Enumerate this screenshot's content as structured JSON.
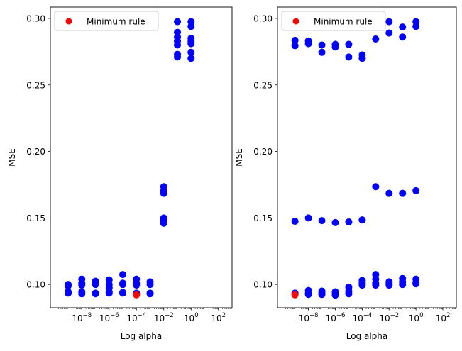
{
  "colors": {
    "series_color": "#0000ff",
    "highlight_color": "#ff0000",
    "axis_color": "#000000",
    "background": "#ffffff"
  },
  "chart_data": [
    {
      "type": "scatter",
      "xscale": "log",
      "xlabel": "Log alpha",
      "ylabel": "MSE",
      "xlim": [
        5e-11,
        1000
      ],
      "ylim": [
        0.0825,
        0.3085
      ],
      "xticks": [
        {
          "value": 1e-08,
          "base": "10",
          "exp": "−8"
        },
        {
          "value": 1e-06,
          "base": "10",
          "exp": "−6"
        },
        {
          "value": 0.0001,
          "base": "10",
          "exp": "−4"
        },
        {
          "value": 0.01,
          "base": "10",
          "exp": "−2"
        },
        {
          "value": 1,
          "base": "10",
          "exp": "0"
        },
        {
          "value": 100,
          "base": "10",
          "exp": "2"
        }
      ],
      "yticks": [
        {
          "value": 0.1,
          "label": "0.10"
        },
        {
          "value": 0.15,
          "label": "0.15"
        },
        {
          "value": 0.2,
          "label": "0.20"
        },
        {
          "value": 0.25,
          "label": "0.25"
        },
        {
          "value": 0.3,
          "label": "0.30"
        }
      ],
      "legend": {
        "position": "top-left",
        "entries": [
          {
            "label": "Minimum rule",
            "color": "#ff0000"
          }
        ]
      },
      "series": [
        {
          "color": "#0000ff",
          "points": [
            {
              "x": 1e-09,
              "y": 0.1
            },
            {
              "x": 1e-09,
              "y": 0.099
            },
            {
              "x": 1e-09,
              "y": 0.0945
            },
            {
              "x": 1e-09,
              "y": 0.0935
            },
            {
              "x": 1e-08,
              "y": 0.104
            },
            {
              "x": 1e-08,
              "y": 0.101
            },
            {
              "x": 1e-08,
              "y": 0.0995
            },
            {
              "x": 1e-08,
              "y": 0.0945
            },
            {
              "x": 1e-08,
              "y": 0.093
            },
            {
              "x": 1e-07,
              "y": 0.1025
            },
            {
              "x": 1e-07,
              "y": 0.1
            },
            {
              "x": 1e-07,
              "y": 0.0935
            },
            {
              "x": 1e-07,
              "y": 0.093
            },
            {
              "x": 1e-06,
              "y": 0.1035
            },
            {
              "x": 1e-06,
              "y": 0.1
            },
            {
              "x": 1e-06,
              "y": 0.0975
            },
            {
              "x": 1e-06,
              "y": 0.0945
            },
            {
              "x": 1e-06,
              "y": 0.0935
            },
            {
              "x": 1e-05,
              "y": 0.1075
            },
            {
              "x": 1e-05,
              "y": 0.101
            },
            {
              "x": 1e-05,
              "y": 0.1
            },
            {
              "x": 1e-05,
              "y": 0.094
            },
            {
              "x": 1e-05,
              "y": 0.0935
            },
            {
              "x": 0.0001,
              "y": 0.104
            },
            {
              "x": 0.0001,
              "y": 0.101
            },
            {
              "x": 0.0001,
              "y": 0.0995
            },
            {
              "x": 0.0001,
              "y": 0.0935
            },
            {
              "x": 0.0001,
              "y": 0.0925
            },
            {
              "x": 0.001,
              "y": 0.102
            },
            {
              "x": 0.001,
              "y": 0.1
            },
            {
              "x": 0.001,
              "y": 0.0935
            },
            {
              "x": 0.001,
              "y": 0.093
            },
            {
              "x": 0.01,
              "y": 0.1735
            },
            {
              "x": 0.01,
              "y": 0.1705
            },
            {
              "x": 0.01,
              "y": 0.1685
            },
            {
              "x": 0.01,
              "y": 0.15
            },
            {
              "x": 0.01,
              "y": 0.1485
            },
            {
              "x": 0.01,
              "y": 0.147
            },
            {
              "x": 0.01,
              "y": 0.146
            },
            {
              "x": 0.1,
              "y": 0.2975
            },
            {
              "x": 0.1,
              "y": 0.2895
            },
            {
              "x": 0.1,
              "y": 0.286
            },
            {
              "x": 0.1,
              "y": 0.283
            },
            {
              "x": 0.1,
              "y": 0.28
            },
            {
              "x": 0.1,
              "y": 0.273
            },
            {
              "x": 0.1,
              "y": 0.271
            },
            {
              "x": 1,
              "y": 0.2975
            },
            {
              "x": 1,
              "y": 0.294
            },
            {
              "x": 1,
              "y": 0.285
            },
            {
              "x": 1,
              "y": 0.2825
            },
            {
              "x": 1,
              "y": 0.281
            },
            {
              "x": 1,
              "y": 0.2745
            },
            {
              "x": 1,
              "y": 0.27
            }
          ]
        },
        {
          "name": "Minimum rule",
          "color": "#ff0000",
          "points": [
            {
              "x": 0.0001,
              "y": 0.0922
            }
          ]
        }
      ]
    },
    {
      "type": "scatter",
      "xscale": "log",
      "xlabel": "Log alpha",
      "ylabel": "MSE",
      "xlim": [
        5e-11,
        1000
      ],
      "ylim": [
        0.0825,
        0.3085
      ],
      "xticks": [
        {
          "value": 1e-08,
          "base": "10",
          "exp": "−8"
        },
        {
          "value": 1e-06,
          "base": "10",
          "exp": "−6"
        },
        {
          "value": 0.0001,
          "base": "10",
          "exp": "−4"
        },
        {
          "value": 0.01,
          "base": "10",
          "exp": "−2"
        },
        {
          "value": 1,
          "base": "10",
          "exp": "0"
        },
        {
          "value": 100,
          "base": "10",
          "exp": "2"
        }
      ],
      "yticks": [
        {
          "value": 0.1,
          "label": "0.10"
        },
        {
          "value": 0.15,
          "label": "0.15"
        },
        {
          "value": 0.2,
          "label": "0.20"
        },
        {
          "value": 0.25,
          "label": "0.25"
        },
        {
          "value": 0.3,
          "label": "0.30"
        }
      ],
      "legend": {
        "position": "top-left",
        "entries": [
          {
            "label": "Minimum rule",
            "color": "#ff0000"
          }
        ]
      },
      "series": [
        {
          "color": "#0000ff",
          "points": [
            {
              "x": 1e-09,
              "y": 0.2835
            },
            {
              "x": 1e-09,
              "y": 0.2795
            },
            {
              "x": 1e-09,
              "y": 0.1475
            },
            {
              "x": 1e-09,
              "y": 0.0935
            },
            {
              "x": 1e-08,
              "y": 0.283
            },
            {
              "x": 1e-08,
              "y": 0.281
            },
            {
              "x": 1e-08,
              "y": 0.15
            },
            {
              "x": 1e-08,
              "y": 0.0955
            },
            {
              "x": 1e-08,
              "y": 0.0935
            },
            {
              "x": 1e-08,
              "y": 0.0925
            },
            {
              "x": 1e-07,
              "y": 0.28
            },
            {
              "x": 1e-07,
              "y": 0.2745
            },
            {
              "x": 1e-07,
              "y": 0.148
            },
            {
              "x": 1e-07,
              "y": 0.095
            },
            {
              "x": 1e-07,
              "y": 0.0935
            },
            {
              "x": 1e-07,
              "y": 0.0925
            },
            {
              "x": 1e-06,
              "y": 0.2805
            },
            {
              "x": 1e-06,
              "y": 0.2785
            },
            {
              "x": 1e-06,
              "y": 0.1465
            },
            {
              "x": 1e-06,
              "y": 0.0945
            },
            {
              "x": 1e-06,
              "y": 0.093
            },
            {
              "x": 1e-06,
              "y": 0.092
            },
            {
              "x": 1e-05,
              "y": 0.2805
            },
            {
              "x": 1e-05,
              "y": 0.271
            },
            {
              "x": 1e-05,
              "y": 0.147
            },
            {
              "x": 1e-05,
              "y": 0.098
            },
            {
              "x": 1e-05,
              "y": 0.095
            },
            {
              "x": 1e-05,
              "y": 0.093
            },
            {
              "x": 0.0001,
              "y": 0.2725
            },
            {
              "x": 0.0001,
              "y": 0.27
            },
            {
              "x": 0.0001,
              "y": 0.1485
            },
            {
              "x": 0.0001,
              "y": 0.103
            },
            {
              "x": 0.0001,
              "y": 0.101
            },
            {
              "x": 0.0001,
              "y": 0.0995
            },
            {
              "x": 0.001,
              "y": 0.2845
            },
            {
              "x": 0.001,
              "y": 0.1735
            },
            {
              "x": 0.001,
              "y": 0.1075
            },
            {
              "x": 0.001,
              "y": 0.104
            },
            {
              "x": 0.001,
              "y": 0.101
            },
            {
              "x": 0.001,
              "y": 0.0995
            },
            {
              "x": 0.01,
              "y": 0.2975
            },
            {
              "x": 0.01,
              "y": 0.289
            },
            {
              "x": 0.01,
              "y": 0.1685
            },
            {
              "x": 0.01,
              "y": 0.102
            },
            {
              "x": 0.01,
              "y": 0.1005
            },
            {
              "x": 0.01,
              "y": 0.0995
            },
            {
              "x": 0.1,
              "y": 0.2935
            },
            {
              "x": 0.1,
              "y": 0.286
            },
            {
              "x": 0.1,
              "y": 0.1685
            },
            {
              "x": 0.1,
              "y": 0.1045
            },
            {
              "x": 0.1,
              "y": 0.102
            },
            {
              "x": 0.1,
              "y": 0.1
            },
            {
              "x": 1,
              "y": 0.2975
            },
            {
              "x": 1,
              "y": 0.294
            },
            {
              "x": 1,
              "y": 0.1705
            },
            {
              "x": 1,
              "y": 0.104
            },
            {
              "x": 1,
              "y": 0.1015
            },
            {
              "x": 1,
              "y": 0.1005
            }
          ]
        },
        {
          "name": "Minimum rule",
          "color": "#ff0000",
          "points": [
            {
              "x": 1e-09,
              "y": 0.0922
            }
          ]
        }
      ]
    }
  ]
}
